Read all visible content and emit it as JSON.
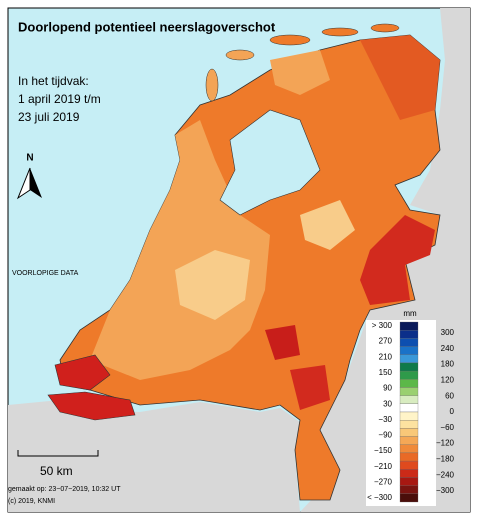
{
  "header": {
    "title": "Doorlopend potentieel neerslagoverschot",
    "period": [
      "In het tijdvak:",
      "1 april 2019 t/m",
      "23 juli 2019"
    ]
  },
  "north": "N",
  "notice": "VOORLOPIGE DATA",
  "legend": {
    "unit": "mm",
    "left_labels": [
      "> 300",
      "270",
      "210",
      "150",
      "90",
      "30",
      "−30",
      "−90",
      "−150",
      "−210",
      "−270",
      "< −300"
    ],
    "right_labels": [
      "300",
      "240",
      "180",
      "120",
      "60",
      "0",
      "−60",
      "−120",
      "−180",
      "−240",
      "−300"
    ]
  },
  "scale": "50 km",
  "footer": [
    "gemaakt op: 23−07−2019, 10:32 UT",
    "(c) 2019, KNMI"
  ]
}
